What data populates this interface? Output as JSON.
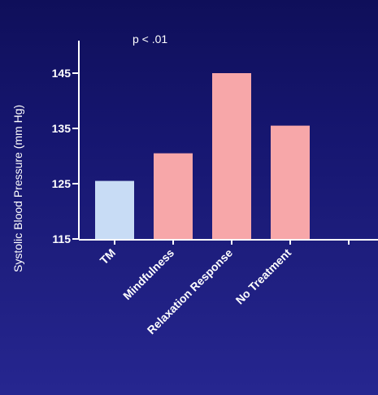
{
  "chart_data": {
    "type": "bar",
    "categories": [
      "TM",
      "Mindfulness",
      "Relaxation Response",
      "No Treatment"
    ],
    "values": [
      125.5,
      130.5,
      145,
      135.5
    ],
    "bar_colors": [
      "#c8dcf5",
      "#f7a7a9",
      "#f7a7a9",
      "#f7a7a9"
    ],
    "title": "",
    "xlabel": "",
    "ylabel": "Systolic Blood Pressure (mm Hg)",
    "ylim": [
      115,
      150
    ],
    "yticks": [
      115,
      125,
      135,
      145
    ],
    "annotation": "p < .01",
    "grid": false,
    "legend": "none"
  }
}
